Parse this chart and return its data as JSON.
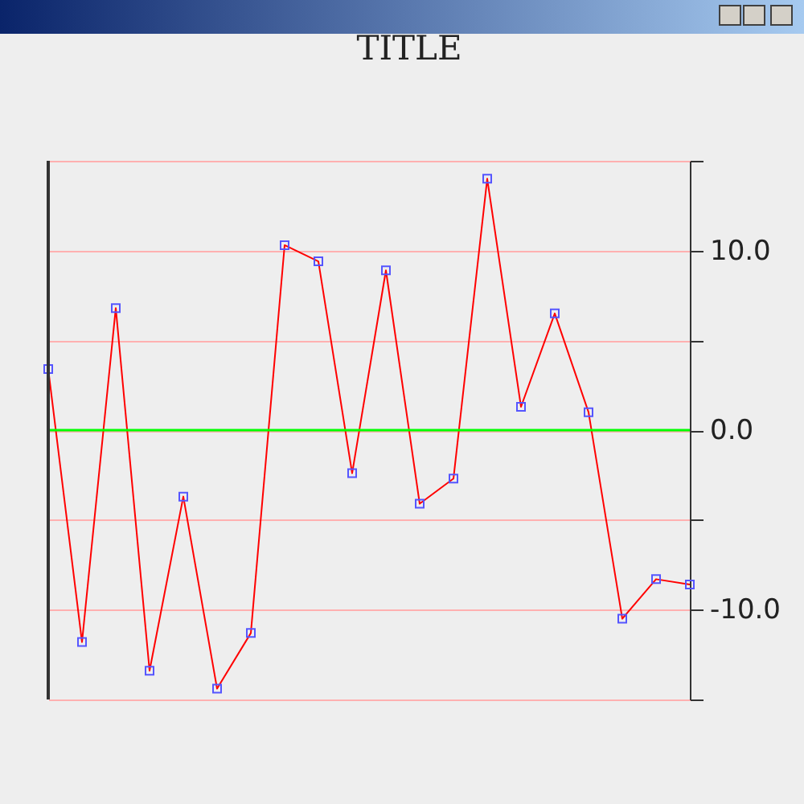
{
  "chart_data": {
    "type": "line",
    "title": "TITLE",
    "categories": [
      null,
      null,
      null,
      null,
      null,
      null,
      null,
      null,
      null,
      null,
      null,
      null,
      null,
      null,
      null,
      null,
      null,
      null,
      null,
      null
    ],
    "series": [
      {
        "color": "#ff0000",
        "values": [
          3.4,
          -11.8,
          6.8,
          -13.4,
          -3.7,
          -14.4,
          -11.3,
          10.3,
          9.4,
          -2.4,
          8.9,
          -4.1,
          -2.7,
          14.0,
          1.3,
          6.5,
          1.0,
          -10.5,
          -8.3,
          -8.6
        ]
      }
    ],
    "ylim": [
      -15,
      15
    ],
    "yticks": [
      {
        "value": -15,
        "label": null
      },
      {
        "value": -10,
        "label": "-10.0"
      },
      {
        "value": -5,
        "label": null
      },
      {
        "value": 0,
        "label": "0.0"
      },
      {
        "value": 5,
        "label": null
      },
      {
        "value": 10,
        "label": "10.0"
      },
      {
        "value": 15,
        "label": null
      }
    ],
    "ref_lines": [
      {
        "axis": "y",
        "value": 0,
        "color": "#00ff00"
      }
    ],
    "grid": "y",
    "marker": "square",
    "tick_labels": "y"
  }
}
